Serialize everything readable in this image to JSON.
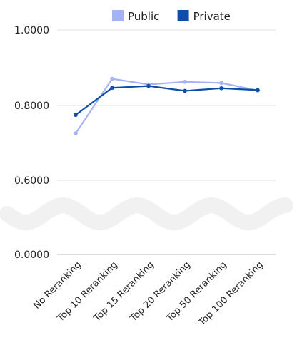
{
  "chart_data": {
    "type": "line",
    "title": "",
    "xlabel": "",
    "ylabel": "",
    "categories": [
      "No Reranking",
      "Top 10 Reranking",
      "Top 15 Reranking",
      "Top 20 Reranking",
      "Top 50 Reranking",
      "Top 100 Reranking"
    ],
    "y_ticks": [
      "1.0000",
      "0.8000",
      "0.6000",
      "0.0000"
    ],
    "broken_axis": true,
    "grid": true,
    "legend_position": "top-center",
    "series": [
      {
        "name": "Public",
        "color": "#a3b3f5",
        "values": [
          0.725,
          0.87,
          0.855,
          0.862,
          0.859,
          0.839
        ]
      },
      {
        "name": "Private",
        "color": "#0d4ea6",
        "values": [
          0.774,
          0.846,
          0.851,
          0.838,
          0.845,
          0.84
        ]
      }
    ]
  }
}
